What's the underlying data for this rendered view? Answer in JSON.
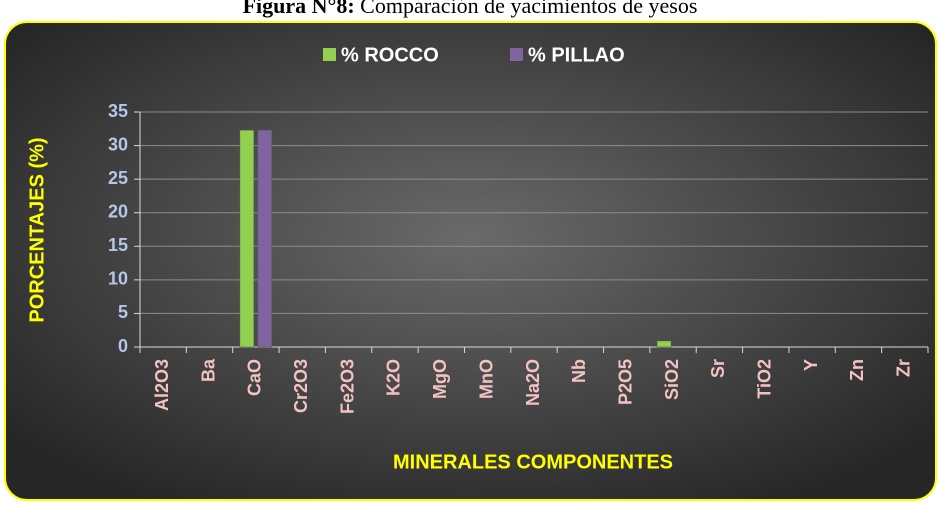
{
  "chart_data": {
    "type": "bar",
    "figure_label": "Figura N°8:",
    "title": "Comparación de yacimientos de yesos",
    "x_label": "MINERALES COMPONENTES",
    "y_label": "PORCENTAJES (%)",
    "categories": [
      "Al2O3",
      "Ba",
      "CaO",
      "Cr2O3",
      "Fe2O3",
      "K2O",
      "MgO",
      "MnO",
      "Na2O",
      "Nb",
      "P2O5",
      "SiO2",
      "Sr",
      "TiO2",
      "Y",
      "Zn",
      "Zr"
    ],
    "series": [
      {
        "name": "% ROCCO",
        "color": "#92d050",
        "values": [
          0,
          0,
          32.3,
          0,
          0,
          0,
          0,
          0,
          0,
          0,
          0,
          0.9,
          0,
          0,
          0,
          0,
          0
        ]
      },
      {
        "name": "% PILLAO",
        "color": "#8064a2",
        "values": [
          0,
          0,
          32.3,
          0,
          0,
          0,
          0,
          0,
          0,
          0,
          0,
          0,
          0,
          0,
          0,
          0,
          0
        ]
      }
    ],
    "ylim": [
      0,
      35
    ],
    "yticks": [
      0,
      5,
      10,
      15,
      20,
      25,
      30,
      35
    ],
    "grid": true,
    "legend": "top"
  }
}
